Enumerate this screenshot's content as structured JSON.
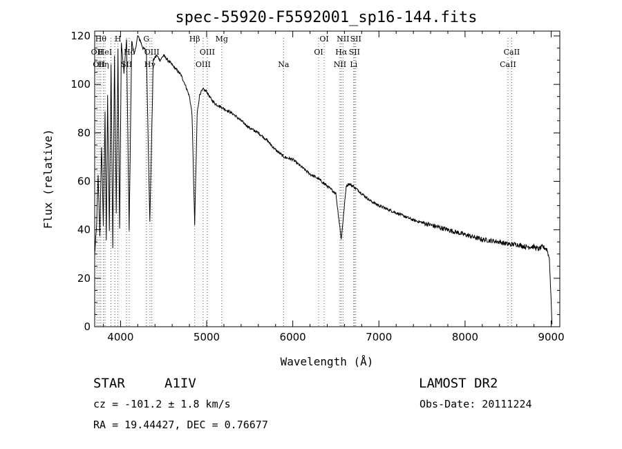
{
  "chart_data": {
    "type": "line",
    "title": "spec-55920-F5592001_sp16-144.fits",
    "xlabel": "Wavelength (Å)",
    "ylabel": "Flux (relative)",
    "xlim": [
      3700,
      9100
    ],
    "ylim": [
      0,
      122
    ],
    "xticks": [
      4000,
      5000,
      6000,
      7000,
      8000,
      9000
    ],
    "yticks": [
      0,
      20,
      40,
      60,
      80,
      100,
      120
    ],
    "grid": false,
    "series": [
      {
        "x": [
          3700,
          3720,
          3740,
          3760,
          3780,
          3800,
          3820,
          3835,
          3850,
          3870,
          3890,
          3910,
          3930,
          3950,
          3970,
          3990,
          4010,
          4040,
          4070,
          4100,
          4130,
          4160,
          4200,
          4230,
          4260,
          4300,
          4340,
          4380,
          4420,
          4460,
          4500,
          4550,
          4600,
          4650,
          4700,
          4750,
          4800,
          4830,
          4861,
          4890,
          4920,
          4960,
          5000,
          5050,
          5100,
          5200,
          5300,
          5400,
          5500,
          5600,
          5700,
          5800,
          5900,
          6000,
          6100,
          6200,
          6300,
          6400,
          6500,
          6563,
          6620,
          6650,
          6700,
          6800,
          6900,
          7000,
          7200,
          7400,
          7600,
          7800,
          8000,
          8200,
          8400,
          8500,
          8600,
          8700,
          8800,
          8850,
          8900,
          8950,
          8980,
          9000,
          9010
        ],
        "y": [
          30,
          40,
          62,
          38,
          75,
          42,
          88,
          36,
          95,
          40,
          108,
          33,
          112,
          48,
          114,
          40,
          117,
          105,
          118,
          40,
          118,
          112,
          120,
          118,
          115,
          114,
          43,
          110,
          112,
          110,
          112,
          110,
          108,
          106,
          104,
          100,
          95,
          88,
          42,
          88,
          96,
          98,
          97,
          94,
          92,
          90,
          88,
          85,
          82,
          80,
          77,
          73,
          70,
          69,
          66,
          63,
          61,
          58,
          55,
          36,
          58,
          59,
          58,
          55,
          52,
          50,
          47,
          44,
          42,
          40,
          38,
          36,
          35,
          34,
          34,
          33,
          33,
          32,
          33,
          32,
          28,
          10,
          1
        ]
      }
    ],
    "lines": [
      {
        "wave": 3727,
        "label": "OII",
        "row": 1
      },
      {
        "wave": 3750,
        "label": "OII",
        "row": 2
      },
      {
        "wave": 3771,
        "label": "Hθ",
        "row": 0
      },
      {
        "wave": 3800,
        "label": "Hη",
        "row": 2
      },
      {
        "wave": 3820,
        "label": "HeI",
        "row": 1
      },
      {
        "wave": 3889,
        "label": "",
        "row": -1
      },
      {
        "wave": 3934,
        "label": "",
        "row": -1
      },
      {
        "wave": 3970,
        "label": "H",
        "row": 0
      },
      {
        "wave": 4070,
        "label": "SII",
        "row": 2
      },
      {
        "wave": 4102,
        "label": "Hδ",
        "row": 1
      },
      {
        "wave": 4300,
        "label": "G",
        "row": 0
      },
      {
        "wave": 4341,
        "label": "Hγ",
        "row": 2
      },
      {
        "wave": 4364,
        "label": "OIII",
        "row": 1
      },
      {
        "wave": 4861,
        "label": "Hβ",
        "row": 0
      },
      {
        "wave": 4959,
        "label": "OIII",
        "row": 2
      },
      {
        "wave": 5007,
        "label": "OIII",
        "row": 1
      },
      {
        "wave": 5175,
        "label": "Mg",
        "row": 0
      },
      {
        "wave": 5893,
        "label": "Na",
        "row": 2
      },
      {
        "wave": 6300,
        "label": "OI",
        "row": 1
      },
      {
        "wave": 6364,
        "label": "OI",
        "row": 0
      },
      {
        "wave": 6548,
        "label": "NII",
        "row": 2
      },
      {
        "wave": 6563,
        "label": "Hα",
        "row": 1
      },
      {
        "wave": 6583,
        "label": "NII",
        "row": 0
      },
      {
        "wave": 6707,
        "label": "Li",
        "row": 2
      },
      {
        "wave": 6716,
        "label": "SII",
        "row": 1
      },
      {
        "wave": 6731,
        "label": "SII",
        "row": 0
      },
      {
        "wave": 8498,
        "label": "CaII",
        "row": 2
      },
      {
        "wave": 8542,
        "label": "CaII",
        "row": 1
      }
    ],
    "line_color": "#ff0000"
  },
  "info": {
    "class": "STAR",
    "subclass": "A1IV",
    "survey": "LAMOST DR2",
    "cz": "cz = -101.2 ± 1.8 km/s",
    "obsdate": "Obs-Date: 20111224",
    "radec": "RA =  19.44427, DEC =   0.76677"
  }
}
